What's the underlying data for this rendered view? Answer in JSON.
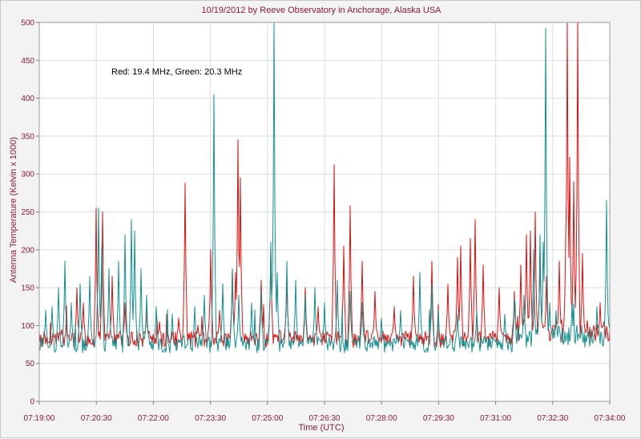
{
  "chart_data": {
    "type": "line",
    "title": "10/19/2012  by  Reeve Observatory  in  Anchorage, Alaska  USA",
    "xlabel": "Time (UTC)",
    "ylabel": "Antenna Temperature (Kelvin x 1000)",
    "annotation": "Red: 19.4 MHz, Green: 20.3 MHz",
    "xlim": [
      "07:19:00",
      "07:34:00"
    ],
    "ylim": [
      0,
      500
    ],
    "x_ticks": [
      "07:19:00",
      "07:20:30",
      "07:22:00",
      "07:23:30",
      "07:25:00",
      "07:26:30",
      "07:28:00",
      "07:29:30",
      "07:31:00",
      "07:32:30",
      "07:34:00"
    ],
    "y_ticks": [
      0,
      50,
      100,
      150,
      200,
      250,
      300,
      350,
      400,
      450,
      500
    ],
    "grid": true,
    "series": [
      {
        "name": "Red: 19.4 MHz",
        "color": "#e01010",
        "baseline": 82,
        "spikes": [
          [
            "07:19:35",
            95
          ],
          [
            "07:20:00",
            150
          ],
          [
            "07:20:10",
            130
          ],
          [
            "07:20:30",
            255
          ],
          [
            "07:20:40",
            250
          ],
          [
            "07:20:55",
            165
          ],
          [
            "07:21:15",
            130
          ],
          [
            "07:21:50",
            120
          ],
          [
            "07:22:10",
            105
          ],
          [
            "07:22:40",
            110
          ],
          [
            "07:22:50",
            288
          ],
          [
            "07:23:10",
            100
          ],
          [
            "07:23:30",
            200
          ],
          [
            "07:23:45",
            120
          ],
          [
            "07:24:05",
            175
          ],
          [
            "07:24:10",
            170
          ],
          [
            "07:24:13",
            345
          ],
          [
            "07:24:17",
            295
          ],
          [
            "07:24:50",
            160
          ],
          [
            "07:25:05",
            200
          ],
          [
            "07:25:30",
            160
          ],
          [
            "07:26:00",
            150
          ],
          [
            "07:26:20",
            125
          ],
          [
            "07:26:45",
            312
          ],
          [
            "07:27:00",
            205
          ],
          [
            "07:27:10",
            258
          ],
          [
            "07:27:30",
            185
          ],
          [
            "07:27:50",
            145
          ],
          [
            "07:28:20",
            125
          ],
          [
            "07:28:50",
            165
          ],
          [
            "07:29:20",
            185
          ],
          [
            "07:29:45",
            155
          ],
          [
            "07:30:00",
            190
          ],
          [
            "07:30:05",
            205
          ],
          [
            "07:30:20",
            215
          ],
          [
            "07:30:28",
            240
          ],
          [
            "07:30:40",
            180
          ],
          [
            "07:31:05",
            150
          ],
          [
            "07:31:30",
            145
          ],
          [
            "07:31:40",
            180
          ],
          [
            "07:31:48",
            220
          ],
          [
            "07:31:55",
            225
          ],
          [
            "07:32:02",
            250
          ],
          [
            "07:32:10",
            200
          ],
          [
            "07:32:20",
            165
          ],
          [
            "07:32:40",
            185
          ],
          [
            "07:32:50",
            215
          ],
          [
            "07:32:53",
            500
          ],
          [
            "07:32:57",
            322
          ],
          [
            "07:33:03",
            290
          ],
          [
            "07:33:10",
            500
          ],
          [
            "07:33:17",
            195
          ],
          [
            "07:33:45",
            130
          ]
        ]
      },
      {
        "name": "Green: 20.3 MHz",
        "color": "#129090",
        "baseline": 75,
        "spikes": [
          [
            "07:19:10",
            120
          ],
          [
            "07:19:20",
            125
          ],
          [
            "07:19:30",
            150
          ],
          [
            "07:19:40",
            185
          ],
          [
            "07:19:50",
            130
          ],
          [
            "07:20:05",
            155
          ],
          [
            "07:20:20",
            165
          ],
          [
            "07:20:33",
            255
          ],
          [
            "07:20:38",
            205
          ],
          [
            "07:20:50",
            175
          ],
          [
            "07:21:05",
            185
          ],
          [
            "07:21:15",
            220
          ],
          [
            "07:21:25",
            240
          ],
          [
            "07:21:30",
            225
          ],
          [
            "07:21:40",
            175
          ],
          [
            "07:21:50",
            140
          ],
          [
            "07:22:05",
            125
          ],
          [
            "07:22:30",
            115
          ],
          [
            "07:23:05",
            125
          ],
          [
            "07:23:20",
            140
          ],
          [
            "07:23:35",
            405
          ],
          [
            "07:23:50",
            155
          ],
          [
            "07:24:05",
            175
          ],
          [
            "07:24:15",
            140
          ],
          [
            "07:24:35",
            130
          ],
          [
            "07:24:50",
            145
          ],
          [
            "07:25:05",
            210
          ],
          [
            "07:25:10",
            500
          ],
          [
            "07:25:15",
            170
          ],
          [
            "07:25:30",
            185
          ],
          [
            "07:25:45",
            160
          ],
          [
            "07:26:00",
            140
          ],
          [
            "07:26:15",
            150
          ],
          [
            "07:26:30",
            130
          ],
          [
            "07:26:50",
            160
          ],
          [
            "07:27:10",
            145
          ],
          [
            "07:27:30",
            130
          ],
          [
            "07:28:00",
            110
          ],
          [
            "07:28:30",
            120
          ],
          [
            "07:29:00",
            170
          ],
          [
            "07:29:20",
            155
          ],
          [
            "07:29:30",
            120
          ],
          [
            "07:30:00",
            115
          ],
          [
            "07:30:30",
            120
          ],
          [
            "07:31:15",
            115
          ],
          [
            "07:31:30",
            135
          ],
          [
            "07:31:45",
            140
          ],
          [
            "07:32:00",
            200
          ],
          [
            "07:32:10",
            220
          ],
          [
            "07:32:15",
            210
          ],
          [
            "07:32:19",
            492
          ],
          [
            "07:32:25",
            130
          ],
          [
            "07:32:35",
            120
          ],
          [
            "07:33:00",
            130
          ],
          [
            "07:33:40",
            125
          ],
          [
            "07:33:55",
            265
          ]
        ]
      }
    ]
  }
}
